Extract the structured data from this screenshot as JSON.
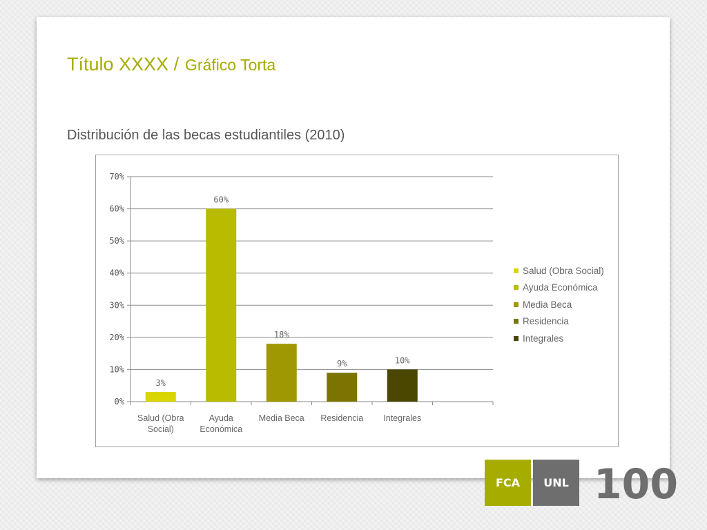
{
  "slide": {
    "title_main": "Título XXXX /",
    "title_sub": "Gráfico Torta",
    "subtitle": "Distribución de las becas estudiantiles (2010)"
  },
  "chart_data": {
    "type": "bar",
    "title": "",
    "xlabel": "",
    "ylabel": "",
    "categories": [
      "Salud (Obra Social)",
      "Ayuda Económica",
      "Media Beca",
      "Residencia",
      "Integrales"
    ],
    "category_labels": [
      [
        "Salud (Obra",
        "Social)"
      ],
      [
        "Ayuda",
        "Económica"
      ],
      [
        "Media Beca"
      ],
      [
        "Residencia"
      ],
      [
        "Integrales"
      ]
    ],
    "values": [
      3,
      60,
      18,
      9,
      10
    ],
    "value_labels": [
      "3%",
      "60%",
      "18%",
      "9%",
      "10%"
    ],
    "colors": [
      "#d9d500",
      "#b8bb00",
      "#a09800",
      "#7b7500",
      "#4b4700"
    ],
    "ylim": [
      0,
      70
    ],
    "yticks": [
      0,
      10,
      20,
      30,
      40,
      50,
      60,
      70
    ],
    "ytick_labels": [
      "0%",
      "10%",
      "20%",
      "30%",
      "40%",
      "50%",
      "60%",
      "70%"
    ],
    "grid": true,
    "legend_position": "right",
    "legend": [
      "Salud (Obra Social)",
      "Ayuda Económica",
      "Media Beca",
      "Residencia",
      "Integrales"
    ]
  },
  "logos": {
    "fca": "FCA",
    "unl": "UNL",
    "hundred": "100",
    "accent_color": "#a6ac00",
    "gray_color": "#6e6e6e"
  }
}
